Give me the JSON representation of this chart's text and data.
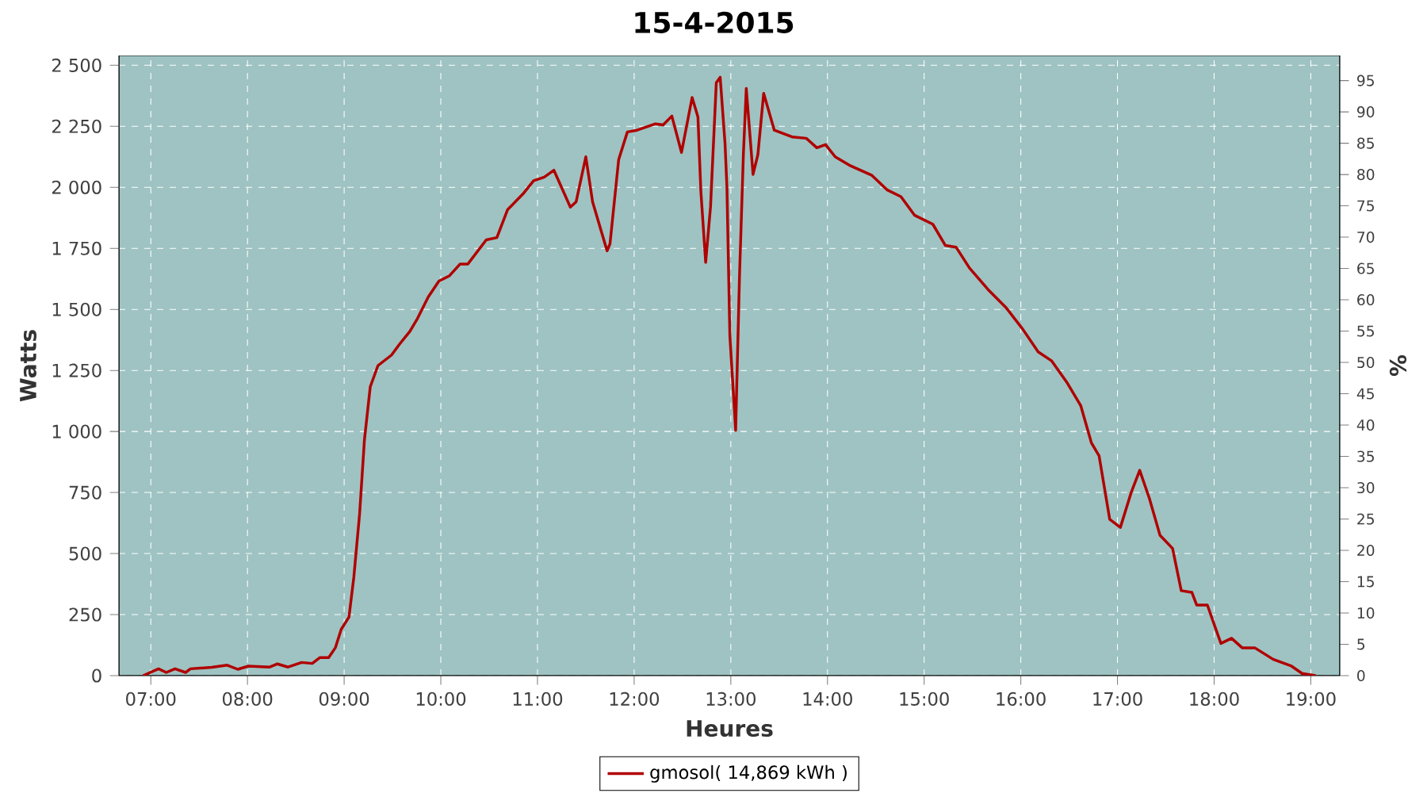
{
  "chart_data": {
    "type": "line",
    "title": "15-4-2015",
    "xlabel": "Heures",
    "ylabel": "Watts",
    "y2label": "%",
    "x": [
      6.92,
      7.08,
      7.16,
      7.25,
      7.36,
      7.41,
      7.63,
      7.79,
      7.9,
      8.01,
      8.23,
      8.31,
      8.42,
      8.56,
      8.67,
      8.75,
      8.84,
      8.91,
      8.97,
      9.05,
      9.1,
      9.16,
      9.21,
      9.27,
      9.35,
      9.49,
      9.57,
      9.68,
      9.76,
      9.87,
      9.98,
      10.09,
      10.2,
      10.28,
      10.47,
      10.58,
      10.69,
      10.85,
      10.96,
      11.07,
      11.17,
      11.34,
      11.4,
      11.5,
      11.57,
      11.72,
      11.75,
      11.84,
      11.93,
      12.03,
      12.22,
      12.3,
      12.39,
      12.49,
      12.6,
      12.66,
      12.69,
      12.74,
      12.79,
      12.85,
      12.89,
      12.94,
      12.96,
      12.99,
      13.05,
      13.09,
      13.13,
      13.16,
      13.23,
      13.28,
      13.34,
      13.45,
      13.64,
      13.78,
      13.89,
      13.98,
      14.08,
      14.24,
      14.46,
      14.62,
      14.76,
      14.9,
      15.09,
      15.22,
      15.33,
      15.47,
      15.66,
      15.85,
      16.02,
      16.18,
      16.32,
      16.48,
      16.62,
      16.73,
      16.81,
      16.92,
      17.03,
      17.14,
      17.23,
      17.33,
      17.44,
      17.57,
      17.66,
      17.77,
      17.82,
      17.93,
      18.07,
      18.18,
      18.29,
      18.42,
      18.61,
      18.8,
      18.91,
      19.05
    ],
    "series": [
      {
        "name": "gmosol( 14,869 kWh )",
        "color": "#b00000",
        "values": [
          0,
          28,
          13,
          28,
          13,
          28,
          34,
          43,
          26,
          39,
          35,
          48,
          35,
          54,
          50,
          74,
          74,
          115,
          190,
          240,
          403,
          663,
          966,
          1183,
          1270,
          1313,
          1356,
          1410,
          1464,
          1551,
          1616,
          1638,
          1686,
          1686,
          1785,
          1794,
          1908,
          1973,
          2027,
          2042,
          2070,
          1919,
          1941,
          2125,
          1941,
          1740,
          1768,
          2114,
          2227,
          2234,
          2260,
          2256,
          2292,
          2143,
          2368,
          2288,
          1985,
          1693,
          1920,
          2429,
          2451,
          2181,
          2000,
          1394,
          1005,
          1637,
          2134,
          2405,
          2053,
          2134,
          2385,
          2234,
          2206,
          2201,
          2162,
          2175,
          2125,
          2088,
          2049,
          1989,
          1962,
          1886,
          1849,
          1762,
          1755,
          1669,
          1582,
          1506,
          1419,
          1326,
          1289,
          1199,
          1106,
          954,
          900,
          640,
          607,
          748,
          841,
          726,
          575,
          521,
          348,
          341,
          289,
          289,
          132,
          153,
          114,
          114,
          67,
          39,
          9,
          0
        ]
      }
    ],
    "xlim": [
      6.67,
      19.3
    ],
    "xticks": [
      {
        "value": 7,
        "label": "07:00"
      },
      {
        "value": 8,
        "label": "08:00"
      },
      {
        "value": 9,
        "label": "09:00"
      },
      {
        "value": 10,
        "label": "10:00"
      },
      {
        "value": 11,
        "label": "11:00"
      },
      {
        "value": 12,
        "label": "12:00"
      },
      {
        "value": 13,
        "label": "13:00"
      },
      {
        "value": 14,
        "label": "14:00"
      },
      {
        "value": 15,
        "label": "15:00"
      },
      {
        "value": 16,
        "label": "16:00"
      },
      {
        "value": 17,
        "label": "17:00"
      },
      {
        "value": 18,
        "label": "18:00"
      },
      {
        "value": 19,
        "label": "19:00"
      }
    ],
    "ylim": [
      0,
      2540
    ],
    "yticks": [
      0,
      250,
      500,
      750,
      {
        "value": 1000,
        "label": "1 000"
      },
      {
        "value": 1250,
        "label": "1 250"
      },
      {
        "value": 1500,
        "label": "1 500"
      },
      {
        "value": 1750,
        "label": "1 750"
      },
      {
        "value": 2000,
        "label": "2 000"
      },
      {
        "value": 2250,
        "label": "2 250"
      },
      {
        "value": 2500,
        "label": "2 500"
      }
    ],
    "y2lim": [
      0,
      99
    ],
    "y2ticks": [
      0,
      5,
      10,
      15,
      20,
      25,
      30,
      35,
      40,
      45,
      50,
      55,
      60,
      65,
      70,
      75,
      80,
      85,
      90,
      95
    ],
    "grid": true,
    "legend": "bottom"
  }
}
